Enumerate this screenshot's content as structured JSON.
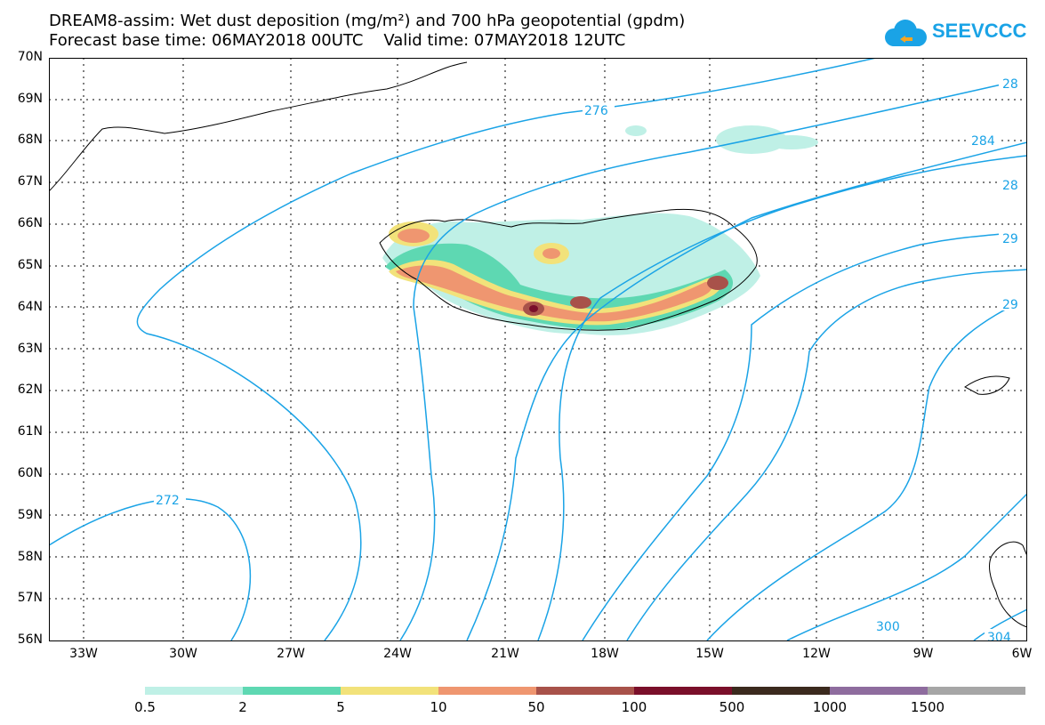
{
  "header": {
    "title_line1": "DREAM8-assim: Wet dust deposition (mg/m²) and 700 hPa geopotential (gpdm)",
    "title_line2": "Forecast base time: 06MAY2018 00UTC    Valid time: 07MAY2018 12UTC",
    "logo_text": "SEEVCCC"
  },
  "axes": {
    "lat_labels": [
      "70N",
      "69N",
      "68N",
      "67N",
      "66N",
      "65N",
      "64N",
      "63N",
      "62N",
      "61N",
      "60N",
      "59N",
      "58N",
      "57N",
      "56N"
    ],
    "lon_labels": [
      "33W",
      "30W",
      "27W",
      "24W",
      "21W",
      "18W",
      "15W",
      "12W",
      "9W",
      "6W"
    ]
  },
  "contours": {
    "color": "#1aa3e6",
    "labels": [
      "276",
      "28",
      "284",
      "28",
      "29",
      "29",
      "272",
      "300",
      "304"
    ]
  },
  "colorbar": {
    "labels": [
      "0.5",
      "2",
      "5",
      "10",
      "50",
      "100",
      "500",
      "1000",
      "1500"
    ],
    "colors": [
      "#bff0e6",
      "#5ed8b2",
      "#f2e27a",
      "#ef9670",
      "#a8524a",
      "#7a0f2a",
      "#3b2a1e",
      "#8e6c9e",
      "#a6a6a6"
    ]
  }
}
